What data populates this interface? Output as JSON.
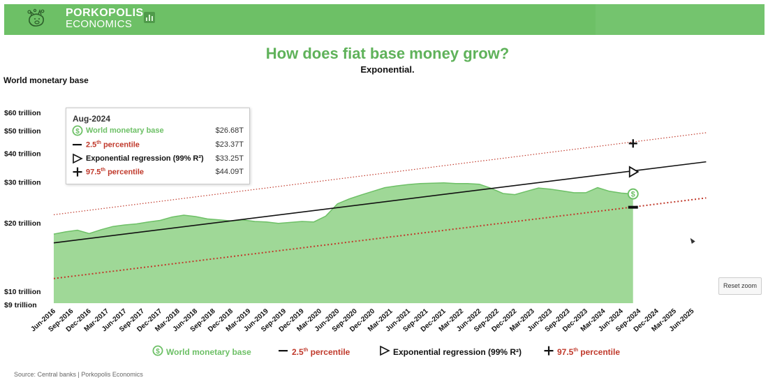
{
  "header": {
    "brand_line1": "PORKOPOLIS",
    "brand_line2": "ECONOMICS",
    "brand_color": "#6dc066"
  },
  "chart_title": "How does fiat base money grow?",
  "chart_subtitle": "Exponential.",
  "y_axis_title": "World monetary base",
  "source_text": "Source: Central banks | Porkopolis Economics",
  "reset_zoom_label": "Reset zoom",
  "tooltip": {
    "date": "Aug-2024",
    "rows": [
      {
        "icon": "dollar-circle-icon",
        "label": "World monetary base",
        "value": "$26.68T",
        "color": "#6dc066"
      },
      {
        "icon": "minus-icon",
        "label": "2.5",
        "sup": "th",
        "label_rest": " percentile",
        "value": "$23.37T",
        "color": "#c0392b"
      },
      {
        "icon": "triangle-right-icon",
        "label": "Exponential regression (99% R²)",
        "value": "$33.25T",
        "color": "#111111"
      },
      {
        "icon": "plus-icon",
        "label": "97.5",
        "sup": "th",
        "label_rest": " percentile",
        "value": "$44.09T",
        "color": "#c0392b"
      }
    ]
  },
  "legend": [
    {
      "icon": "dollar-circle-icon",
      "label": "World monetary base",
      "color": "#6dc066"
    },
    {
      "icon": "minus-icon",
      "label": "2.5",
      "sup": "th",
      "label_rest": " percentile",
      "color": "#c0392b"
    },
    {
      "icon": "triangle-right-icon",
      "label": "Exponential regression (99% R²)",
      "color": "#111111"
    },
    {
      "icon": "plus-icon",
      "label": "97.5",
      "sup": "th",
      "label_rest": " percentile",
      "color": "#c0392b"
    }
  ],
  "chart_data": {
    "type": "area",
    "title": "How does fiat base money grow?",
    "subtitle": "Exponential.",
    "ylabel": "World monetary base",
    "y_scale": "log",
    "ylim": [
      9,
      60
    ],
    "y_ticks": [
      {
        "value": 9,
        "label": "$9 trillion"
      },
      {
        "value": 10,
        "label": "$10 trillion"
      },
      {
        "value": 20,
        "label": "$20 trillion"
      },
      {
        "value": 30,
        "label": "$30 trillion"
      },
      {
        "value": 40,
        "label": "$40 trillion"
      },
      {
        "value": 50,
        "label": "$50 trillion"
      },
      {
        "value": 60,
        "label": "$60 trillion"
      }
    ],
    "x_ticks": [
      "Jun-2016",
      "Sep-2016",
      "Dec-2016",
      "Mar-2017",
      "Jun-2017",
      "Sep-2017",
      "Dec-2017",
      "Mar-2018",
      "Jun-2018",
      "Sep-2018",
      "Dec-2018",
      "Mar-2019",
      "Jun-2019",
      "Sep-2019",
      "Dec-2019",
      "Mar-2020",
      "Jun-2020",
      "Sep-2020",
      "Dec-2020",
      "Mar-2021",
      "Jun-2021",
      "Sep-2021",
      "Dec-2021",
      "Mar-2022",
      "Jun-2022",
      "Sep-2022",
      "Dec-2022",
      "Mar-2023",
      "Jun-2023",
      "Sep-2023",
      "Dec-2023",
      "Mar-2024",
      "Jun-2024",
      "Sep-2024",
      "Dec-2024",
      "Mar-2025",
      "Jun-2025"
    ],
    "series": [
      {
        "name": "World monetary base",
        "type": "area",
        "color": "#6dc066",
        "fill": "#9fd897",
        "x": [
          "Jun-2016",
          "Aug-2016",
          "Oct-2016",
          "Dec-2016",
          "Feb-2017",
          "Apr-2017",
          "Jun-2017",
          "Aug-2017",
          "Oct-2017",
          "Dec-2017",
          "Feb-2018",
          "Apr-2018",
          "Jun-2018",
          "Aug-2018",
          "Oct-2018",
          "Dec-2018",
          "Feb-2019",
          "Apr-2019",
          "Jun-2019",
          "Aug-2019",
          "Oct-2019",
          "Dec-2019",
          "Feb-2020",
          "Apr-2020",
          "Jun-2020",
          "Aug-2020",
          "Oct-2020",
          "Dec-2020",
          "Feb-2021",
          "Apr-2021",
          "Jun-2021",
          "Aug-2021",
          "Oct-2021",
          "Dec-2021",
          "Feb-2022",
          "Apr-2022",
          "Jun-2022",
          "Aug-2022",
          "Oct-2022",
          "Dec-2022",
          "Feb-2023",
          "Apr-2023",
          "Jun-2023",
          "Aug-2023",
          "Oct-2023",
          "Dec-2023",
          "Feb-2024",
          "Apr-2024",
          "Jun-2024",
          "Aug-2024"
        ],
        "values": [
          17.9,
          18.3,
          18.6,
          18.0,
          18.7,
          19.3,
          19.6,
          19.8,
          20.2,
          20.5,
          21.2,
          21.6,
          21.3,
          20.8,
          20.6,
          20.4,
          20.6,
          20.3,
          20.2,
          19.9,
          20.1,
          20.3,
          20.2,
          21.4,
          24.2,
          25.4,
          26.4,
          27.4,
          28.4,
          28.9,
          29.3,
          29.6,
          29.7,
          29.8,
          29.6,
          29.6,
          29.4,
          28.2,
          26.8,
          26.5,
          27.4,
          28.3,
          28.0,
          27.5,
          27.0,
          27.0,
          28.4,
          27.4,
          26.9,
          26.68
        ]
      },
      {
        "name": "2.5th percentile",
        "type": "dotted-line",
        "color": "#c0392b",
        "x": [
          "Jun-2016",
          "Jun-2025"
        ],
        "values": [
          11.5,
          25.2
        ]
      },
      {
        "name": "Exponential regression (99% R²)",
        "type": "line",
        "color": "#111111",
        "x": [
          "Jun-2016",
          "Jun-2025"
        ],
        "values": [
          16.4,
          36.1
        ]
      },
      {
        "name": "97.5th percentile",
        "type": "dotted-line",
        "color": "#c0392b",
        "x": [
          "Jun-2016",
          "Jun-2025"
        ],
        "values": [
          21.7,
          48.2
        ]
      }
    ],
    "markers_at": "Aug-2024",
    "legend_position": "bottom",
    "grid": false
  }
}
